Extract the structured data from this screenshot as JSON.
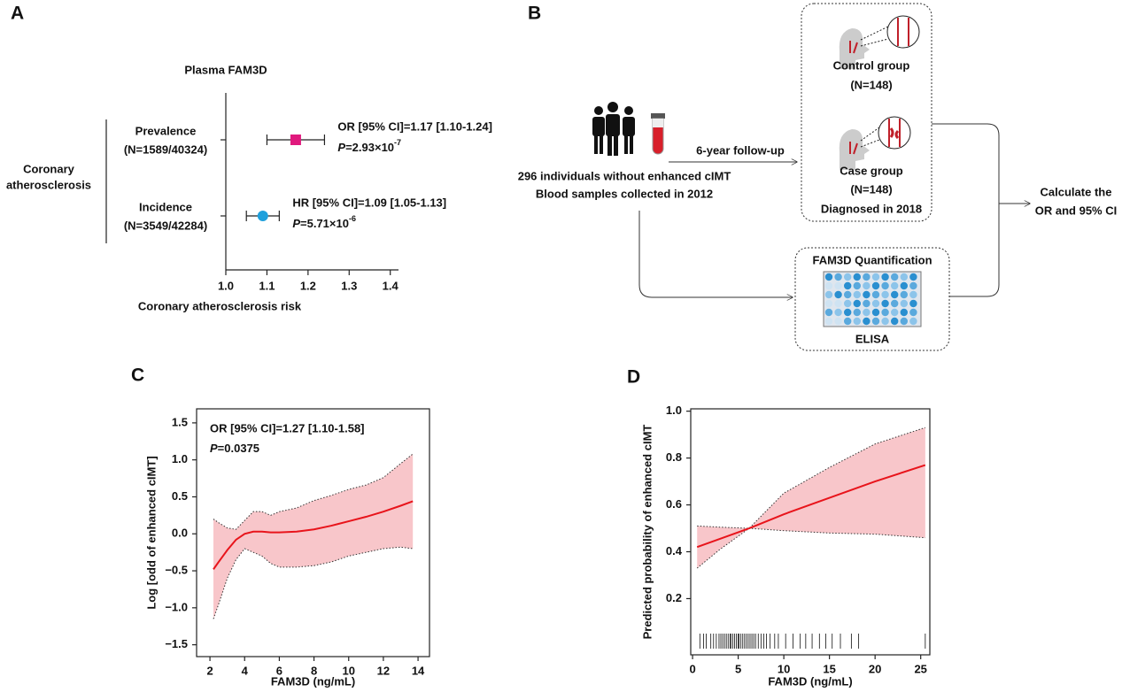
{
  "chart_data": [
    {
      "type": "forest",
      "panel": "A",
      "title": "Plasma FAM3D",
      "group_label": [
        "Coronary",
        "atherosclerosis"
      ],
      "xlabel": "Coronary atherosclerosis risk",
      "xlim": [
        1.0,
        1.42
      ],
      "xticks": [
        {
          "value": 1.0,
          "label": "1.0"
        },
        1.1,
        1.2,
        1.3,
        1.4
      ],
      "rows": [
        {
          "name": "Prevalence",
          "n_label": "(N=1589/40324)",
          "color": "#e0197d",
          "marker": "square",
          "value": 1.17,
          "lower": 1.1,
          "upper": 1.24,
          "annotation": "OR [95% CI]=1.17 [1.10-1.24]",
          "p_symbol": "P",
          "p_text": "=2.93×10",
          "p_exp": "-7"
        },
        {
          "name": "Incidence",
          "n_label": "(N=3549/42284)",
          "color": "#1fa0dc",
          "marker": "circle",
          "value": 1.09,
          "lower": 1.05,
          "upper": 1.13,
          "annotation": "HR [95% CI]=1.09 [1.05-1.13]",
          "p_symbol": "P",
          "p_text": "=5.71×10",
          "p_exp": "-6"
        }
      ]
    },
    {
      "type": "line_ci",
      "panel": "C",
      "xlabel": "FAM3D (ng/mL)",
      "ylabel": "Log [odd of enhanced cIMT]",
      "annotation": "OR [95% CI]=1.27 [1.10-1.58]",
      "p_symbol": "P",
      "p_text": "=0.0375",
      "xlim": [
        1.23,
        14.66
      ],
      "xticks": [
        2,
        4,
        6,
        8,
        10,
        12,
        14
      ],
      "ylim": [
        -1.66,
        1.69
      ],
      "yticks": [
        {
          "value": -1.5,
          "label": "−1.5"
        },
        {
          "value": -1.0,
          "label": "−1.0"
        },
        {
          "value": -0.5,
          "label": "−0.5"
        },
        {
          "value": 0,
          "label": "0.0"
        },
        0.5,
        {
          "value": 1.0,
          "label": "1.0"
        },
        1.5
      ],
      "line_color": "#e8141b",
      "band_color": "#f8c6ca",
      "x": [
        2.2,
        2.5,
        3,
        3.5,
        4,
        4.5,
        5,
        5.5,
        6,
        7,
        8,
        9,
        10,
        11,
        12,
        13,
        13.7
      ],
      "fit": [
        -0.48,
        -0.38,
        -0.22,
        -0.08,
        0.0,
        0.03,
        0.03,
        0.02,
        0.02,
        0.03,
        0.06,
        0.11,
        0.17,
        0.23,
        0.3,
        0.38,
        0.44
      ],
      "upper": [
        0.2,
        0.15,
        0.08,
        0.06,
        0.18,
        0.3,
        0.3,
        0.25,
        0.3,
        0.35,
        0.45,
        0.52,
        0.6,
        0.66,
        0.76,
        0.95,
        1.08
      ],
      "lower": [
        -1.15,
        -0.95,
        -0.6,
        -0.35,
        -0.2,
        -0.25,
        -0.3,
        -0.4,
        -0.45,
        -0.45,
        -0.43,
        -0.38,
        -0.3,
        -0.25,
        -0.2,
        -0.18,
        -0.2
      ]
    },
    {
      "type": "line_ci",
      "panel": "D",
      "xlabel": "FAM3D (ng/mL)",
      "ylabel": "Predicted probability of enhanced cIMT",
      "xlim": [
        -0.2,
        26
      ],
      "xticks": [
        0,
        5,
        10,
        15,
        20,
        25
      ],
      "ylim": [
        -0.04,
        1.01
      ],
      "yticks": [
        0.2,
        0.4,
        0.6,
        0.8,
        {
          "value": 1.0,
          "label": "1.0"
        }
      ],
      "line_color": "#e8141b",
      "band_color": "#f8c6ca",
      "x": [
        0.5,
        3,
        6.2,
        10,
        15,
        20,
        25.5
      ],
      "fit": [
        0.42,
        0.455,
        0.5,
        0.56,
        0.63,
        0.7,
        0.77
      ],
      "upper": [
        0.51,
        0.505,
        0.5,
        0.65,
        0.76,
        0.86,
        0.93
      ],
      "lower": [
        0.33,
        0.41,
        0.5,
        0.49,
        0.48,
        0.475,
        0.46
      ],
      "rug": [
        0.8,
        1.2,
        1.5,
        2.0,
        2.3,
        2.6,
        2.9,
        3.1,
        3.3,
        3.5,
        3.7,
        3.9,
        4.1,
        4.2,
        4.4,
        4.6,
        4.8,
        5.0,
        5.1,
        5.3,
        5.5,
        5.7,
        5.9,
        6.1,
        6.3,
        6.5,
        6.7,
        6.9,
        7.2,
        7.5,
        7.8,
        8.1,
        8.5,
        9.0,
        9.4,
        10.2,
        11.0,
        11.8,
        12.4,
        13.1,
        13.9,
        14.6,
        15.3,
        16.2,
        17.4,
        18.2,
        25.5
      ]
    }
  ],
  "diagram": {
    "panel": "B",
    "cohort": "296 individuals without enhanced cIMT",
    "samples": "Blood samples collected in 2012",
    "followup": "6-year follow-up",
    "control": "Control group",
    "control_n": "(N=148)",
    "case": "Case group",
    "case_n": "(N=148)",
    "diagnosed": "Diagnosed in 2018",
    "calc1": "Calculate the",
    "calc2": "OR and 95% CI",
    "quant": "FAM3D Quantification",
    "elisa": "ELISA"
  }
}
